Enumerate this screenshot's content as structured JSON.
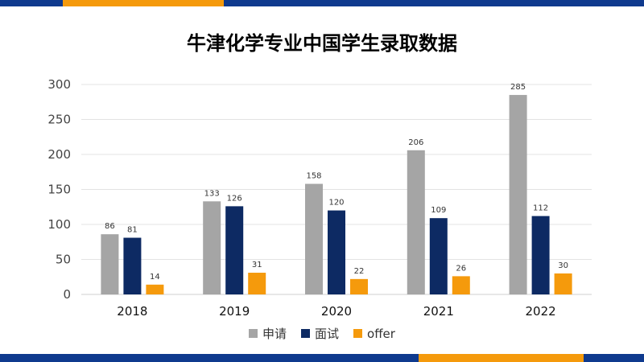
{
  "header": {
    "title": "牛津化学专业中国学生录取数据"
  },
  "colors": {
    "primary": "#0f3a8e",
    "accent": "#f59a0c",
    "gray": "#a5a5a5",
    "navy": "#0d2a63"
  },
  "chart_data": {
    "type": "bar",
    "categories": [
      "2018",
      "2019",
      "2020",
      "2021",
      "2022"
    ],
    "series": [
      {
        "name": "申请",
        "values": [
          86,
          133,
          158,
          206,
          285
        ],
        "color": "#a5a5a5"
      },
      {
        "name": "面试",
        "values": [
          81,
          126,
          120,
          109,
          112
        ],
        "color": "#0d2a63"
      },
      {
        "name": "offer",
        "values": [
          14,
          31,
          22,
          26,
          30
        ],
        "color": "#f59a0c"
      }
    ],
    "yticks": [
      "0",
      "50",
      "100",
      "150",
      "200",
      "250",
      "300"
    ],
    "ylim": [
      0,
      300
    ],
    "grid": true,
    "legend": "bottom"
  }
}
